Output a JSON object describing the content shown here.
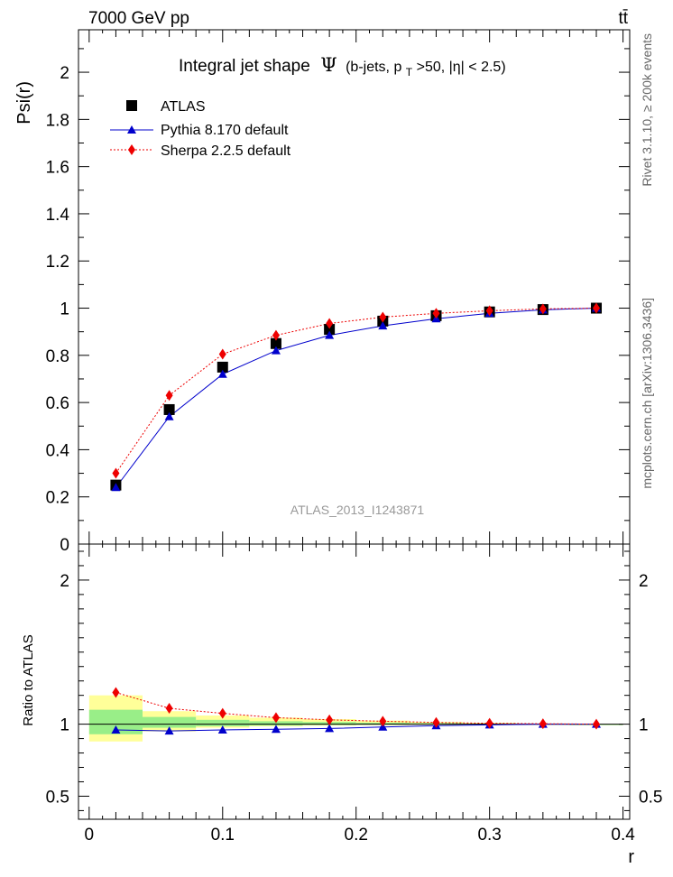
{
  "header": {
    "energy_label": "7000 GeV pp",
    "process_label": "tt̄"
  },
  "side_labels": {
    "rivet": "Rivet 3.1.10, ≥ 200k events",
    "mcplots": "mcplots.cern.ch [arXiv:1306.3436]"
  },
  "chart_data": [
    {
      "type": "scatter",
      "title_main": "Integral jet shape",
      "title_symbol": "Ψ",
      "title_cut_open": "(b-jets, p",
      "title_cut_sub": "T",
      "title_cut_rest": ">50, |η| < 2.5)",
      "watermark": "ATLAS_2013_I1243871",
      "ylabel": "Psi(r)",
      "ylim": [
        0,
        2.18
      ],
      "xlim": [
        -0.008,
        0.405
      ],
      "yticks": [
        "0",
        "0.2",
        "0.4",
        "0.6",
        "0.8",
        "1",
        "1.2",
        "1.4",
        "1.6",
        "1.8",
        "2"
      ],
      "legend": [
        "ATLAS",
        "Pythia 8.170 default",
        "Sherpa 2.2.5 default"
      ],
      "legend_position": "top-left",
      "x": [
        0.02,
        0.06,
        0.1,
        0.14,
        0.18,
        0.22,
        0.26,
        0.3,
        0.34,
        0.38
      ],
      "series": [
        {
          "name": "ATLAS",
          "color": "#000000",
          "marker": "square",
          "values": [
            0.25,
            0.57,
            0.75,
            0.85,
            0.91,
            0.945,
            0.968,
            0.984,
            0.994,
            1.0
          ]
        },
        {
          "name": "Pythia 8.170 default",
          "color": "#0000cc",
          "marker": "triangle",
          "values": [
            0.24,
            0.54,
            0.72,
            0.82,
            0.885,
            0.925,
            0.955,
            0.978,
            0.993,
            1.0
          ]
        },
        {
          "name": "Sherpa 2.2.5 default",
          "color": "#ee0000",
          "marker": "diamond",
          "values": [
            0.3,
            0.63,
            0.805,
            0.885,
            0.935,
            0.962,
            0.978,
            0.989,
            0.997,
            1.0
          ]
        }
      ]
    },
    {
      "type": "scatter",
      "ylabel": "Ratio to ATLAS",
      "xlabel": "r",
      "ylim": [
        0.34,
        2.25
      ],
      "xlim": [
        -0.008,
        0.405
      ],
      "xticks": [
        "0",
        "0.1",
        "0.2",
        "0.3",
        "0.4"
      ],
      "yticks": [
        "0.5",
        "1",
        "2"
      ],
      "x": [
        0.02,
        0.06,
        0.1,
        0.14,
        0.18,
        0.22,
        0.26,
        0.3,
        0.34,
        0.38
      ],
      "bands": {
        "bin_edges": [
          0.0,
          0.04,
          0.08,
          0.12,
          0.16,
          0.2,
          0.24,
          0.28,
          0.32,
          0.36,
          0.4
        ],
        "yellow_low": [
          0.88,
          0.95,
          0.975,
          0.985,
          0.99,
          0.993,
          0.995,
          0.997,
          0.999,
          1.0
        ],
        "yellow_high": [
          1.2,
          1.09,
          1.06,
          1.045,
          1.035,
          1.025,
          1.015,
          1.01,
          1.005,
          1.0
        ],
        "green_low": [
          0.93,
          0.975,
          0.985,
          0.99,
          0.994,
          0.996,
          0.997,
          0.998,
          0.999,
          1.0
        ],
        "green_high": [
          1.1,
          1.05,
          1.03,
          1.02,
          1.015,
          1.01,
          1.007,
          1.004,
          1.002,
          1.0
        ]
      },
      "series": [
        {
          "name": "ATLAS",
          "color": "#000000",
          "values": [
            1,
            1,
            1,
            1,
            1,
            1,
            1,
            1,
            1,
            1
          ]
        },
        {
          "name": "Pythia 8.170 default",
          "color": "#0000cc",
          "marker": "triangle",
          "values": [
            0.96,
            0.953,
            0.96,
            0.965,
            0.97,
            0.98,
            0.99,
            0.995,
            1.0,
            1.0
          ]
        },
        {
          "name": "Sherpa 2.2.5 default",
          "color": "#ee0000",
          "marker": "diamond",
          "values": [
            1.22,
            1.11,
            1.075,
            1.045,
            1.03,
            1.02,
            1.012,
            1.006,
            1.003,
            1.0
          ]
        }
      ]
    }
  ]
}
